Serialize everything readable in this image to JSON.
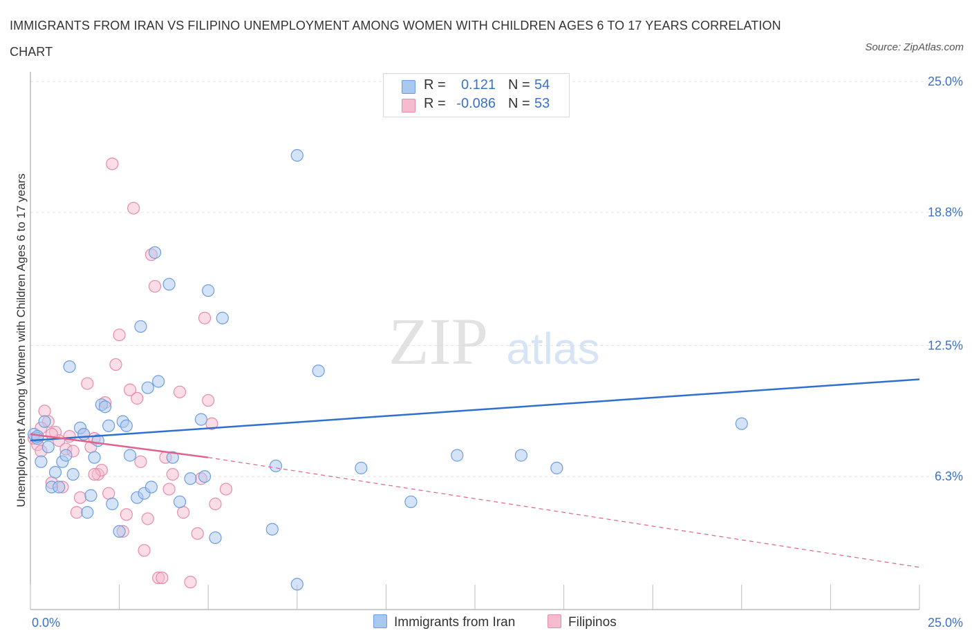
{
  "title": "IMMIGRANTS FROM IRAN VS FILIPINO UNEMPLOYMENT AMONG WOMEN WITH CHILDREN AGES 6 TO 17 YEARS CORRELATION CHART",
  "source": "Source: ZipAtlas.com",
  "watermark": {
    "zip": "ZIP",
    "atlas": "atlas"
  },
  "legend": {
    "rows": [
      {
        "r_label": "R =",
        "r_value": "0.121",
        "n_label": "N =",
        "n_value": "54"
      },
      {
        "r_label": "R =",
        "r_value": "-0.086",
        "n_label": "N =",
        "n_value": "53"
      }
    ]
  },
  "colors": {
    "blue_fill": "#a9c8f0",
    "blue_stroke": "#6b9de0",
    "blue_line": "#2f6fd0",
    "pink_fill": "#f5bcd0",
    "pink_stroke": "#e88aaa",
    "pink_line": "#e0608e",
    "tick_text": "#3a72c8",
    "grid": "#e3e3e3"
  },
  "chart_data": {
    "type": "scatter",
    "title": "IMMIGRANTS FROM IRAN VS FILIPINO UNEMPLOYMENT AMONG WOMEN WITH CHILDREN AGES 6 TO 17 YEARS CORRELATION CHART",
    "xlabel": "",
    "ylabel": "Unemployment Among Women with Children Ages 6 to 17 years",
    "xlim": [
      0,
      25
    ],
    "ylim": [
      0,
      25
    ],
    "x_tick_labels": [
      "0.0%",
      "25.0%"
    ],
    "y_ticks": [
      6.3,
      12.5,
      18.8,
      25.0
    ],
    "y_tick_labels": [
      "6.3%",
      "12.5%",
      "18.8%",
      "25.0%"
    ],
    "grid": true,
    "legend_position": "top-center",
    "series": [
      {
        "name": "Immigrants from Iran",
        "color": "#6b9de0",
        "r": 0.121,
        "n": 54,
        "trend": {
          "x": [
            0,
            25
          ],
          "y": [
            8.0,
            10.9
          ],
          "dashed_extension": false
        },
        "points": [
          {
            "x": 0.1,
            "y": 8.3
          },
          {
            "x": 0.2,
            "y": 8.1
          },
          {
            "x": 0.3,
            "y": 7.0
          },
          {
            "x": 0.4,
            "y": 8.9
          },
          {
            "x": 0.5,
            "y": 7.7
          },
          {
            "x": 0.6,
            "y": 5.8
          },
          {
            "x": 0.7,
            "y": 6.5
          },
          {
            "x": 0.8,
            "y": 5.8
          },
          {
            "x": 0.9,
            "y": 7.0
          },
          {
            "x": 1.0,
            "y": 7.3
          },
          {
            "x": 1.1,
            "y": 11.5
          },
          {
            "x": 1.2,
            "y": 6.4
          },
          {
            "x": 1.4,
            "y": 8.6
          },
          {
            "x": 1.5,
            "y": 8.3
          },
          {
            "x": 1.6,
            "y": 4.6
          },
          {
            "x": 1.7,
            "y": 5.4
          },
          {
            "x": 1.8,
            "y": 7.2
          },
          {
            "x": 1.9,
            "y": 8.0
          },
          {
            "x": 2.0,
            "y": 9.7
          },
          {
            "x": 2.1,
            "y": 9.6
          },
          {
            "x": 2.2,
            "y": 8.7
          },
          {
            "x": 2.3,
            "y": 5.0
          },
          {
            "x": 2.5,
            "y": 3.7
          },
          {
            "x": 2.6,
            "y": 8.9
          },
          {
            "x": 2.7,
            "y": 8.7
          },
          {
            "x": 2.8,
            "y": 7.3
          },
          {
            "x": 3.0,
            "y": 5.3
          },
          {
            "x": 3.1,
            "y": 13.4
          },
          {
            "x": 3.2,
            "y": 5.5
          },
          {
            "x": 3.3,
            "y": 10.5
          },
          {
            "x": 3.4,
            "y": 5.8
          },
          {
            "x": 3.5,
            "y": 16.9
          },
          {
            "x": 3.6,
            "y": 10.8
          },
          {
            "x": 3.9,
            "y": 15.4
          },
          {
            "x": 4.0,
            "y": 7.2
          },
          {
            "x": 4.2,
            "y": 5.1
          },
          {
            "x": 4.5,
            "y": 6.2
          },
          {
            "x": 4.8,
            "y": 9.0
          },
          {
            "x": 4.9,
            "y": 6.3
          },
          {
            "x": 5.0,
            "y": 15.1
          },
          {
            "x": 5.2,
            "y": 3.4
          },
          {
            "x": 5.4,
            "y": 13.8
          },
          {
            "x": 6.8,
            "y": 3.8
          },
          {
            "x": 6.9,
            "y": 6.8
          },
          {
            "x": 7.5,
            "y": 21.5
          },
          {
            "x": 7.5,
            "y": 1.2
          },
          {
            "x": 8.1,
            "y": 11.3
          },
          {
            "x": 9.3,
            "y": 6.7
          },
          {
            "x": 10.7,
            "y": 5.1
          },
          {
            "x": 12.0,
            "y": 7.3
          },
          {
            "x": 13.8,
            "y": 7.3
          },
          {
            "x": 14.8,
            "y": 6.7
          },
          {
            "x": 20.0,
            "y": 8.8
          },
          {
            "x": 0.2,
            "y": 8.2
          }
        ]
      },
      {
        "name": "Filipinos",
        "color": "#e88aaa",
        "r": -0.086,
        "n": 53,
        "trend": {
          "x": [
            0,
            5.0,
            25
          ],
          "y": [
            8.3,
            7.2,
            2.0
          ],
          "dashed_extension": true
        },
        "points": [
          {
            "x": 0.1,
            "y": 8.1
          },
          {
            "x": 0.2,
            "y": 7.8
          },
          {
            "x": 0.3,
            "y": 7.5
          },
          {
            "x": 0.4,
            "y": 9.4
          },
          {
            "x": 0.5,
            "y": 8.9
          },
          {
            "x": 0.6,
            "y": 6.0
          },
          {
            "x": 0.7,
            "y": 8.4
          },
          {
            "x": 0.8,
            "y": 8.0
          },
          {
            "x": 0.9,
            "y": 5.8
          },
          {
            "x": 1.0,
            "y": 7.6
          },
          {
            "x": 1.1,
            "y": 8.2
          },
          {
            "x": 1.2,
            "y": 7.5
          },
          {
            "x": 1.3,
            "y": 4.6
          },
          {
            "x": 1.4,
            "y": 5.3
          },
          {
            "x": 1.5,
            "y": 8.3
          },
          {
            "x": 1.6,
            "y": 10.7
          },
          {
            "x": 1.7,
            "y": 7.7
          },
          {
            "x": 1.8,
            "y": 8.1
          },
          {
            "x": 1.9,
            "y": 6.4
          },
          {
            "x": 2.0,
            "y": 6.6
          },
          {
            "x": 2.1,
            "y": 9.8
          },
          {
            "x": 2.2,
            "y": 5.5
          },
          {
            "x": 2.3,
            "y": 21.1
          },
          {
            "x": 2.4,
            "y": 11.6
          },
          {
            "x": 2.5,
            "y": 13.0
          },
          {
            "x": 2.6,
            "y": 3.7
          },
          {
            "x": 2.7,
            "y": 4.5
          },
          {
            "x": 2.8,
            "y": 10.4
          },
          {
            "x": 2.9,
            "y": 19.0
          },
          {
            "x": 3.0,
            "y": 10.0
          },
          {
            "x": 3.1,
            "y": 7.0
          },
          {
            "x": 3.2,
            "y": 2.8
          },
          {
            "x": 3.3,
            "y": 4.3
          },
          {
            "x": 3.4,
            "y": 16.8
          },
          {
            "x": 3.5,
            "y": 15.3
          },
          {
            "x": 3.6,
            "y": 1.5
          },
          {
            "x": 3.7,
            "y": 1.5
          },
          {
            "x": 3.8,
            "y": 7.2
          },
          {
            "x": 3.9,
            "y": 5.7
          },
          {
            "x": 4.0,
            "y": 6.4
          },
          {
            "x": 4.2,
            "y": 10.3
          },
          {
            "x": 4.3,
            "y": 4.6
          },
          {
            "x": 4.5,
            "y": 1.3
          },
          {
            "x": 4.7,
            "y": 3.6
          },
          {
            "x": 4.8,
            "y": 6.2
          },
          {
            "x": 4.9,
            "y": 13.8
          },
          {
            "x": 5.0,
            "y": 9.9
          },
          {
            "x": 5.1,
            "y": 8.8
          },
          {
            "x": 5.2,
            "y": 5.0
          },
          {
            "x": 5.5,
            "y": 5.7
          },
          {
            "x": 0.3,
            "y": 8.6
          },
          {
            "x": 0.6,
            "y": 8.3
          },
          {
            "x": 1.8,
            "y": 6.4
          }
        ]
      }
    ]
  }
}
